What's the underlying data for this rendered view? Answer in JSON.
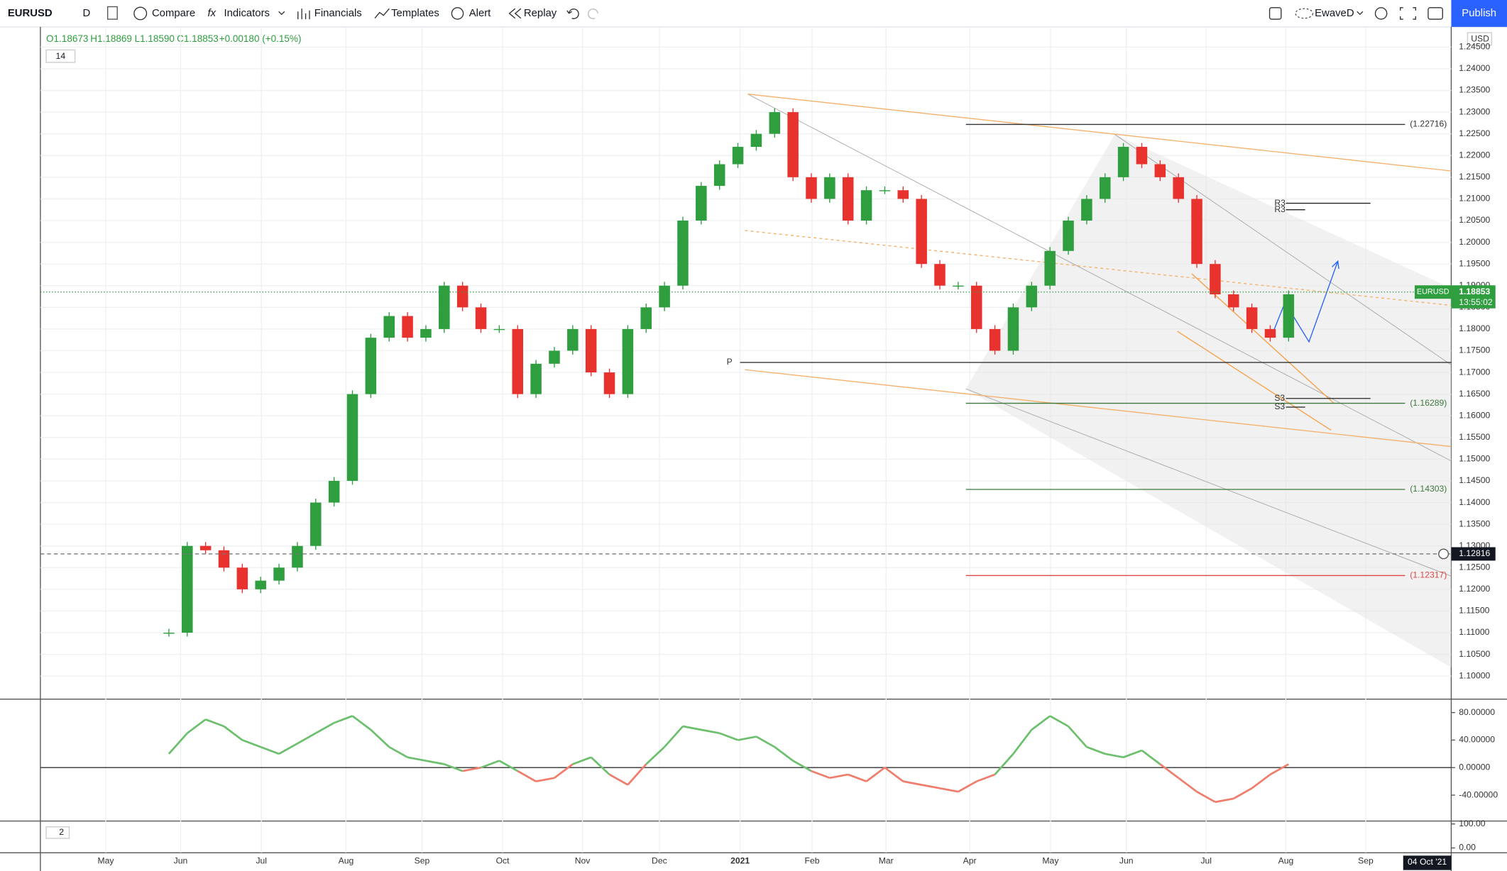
{
  "header": {
    "symbol": "EURUSD",
    "interval": "D",
    "compare": "Compare",
    "indicators": "Indicators",
    "financials": "Financials",
    "templates": "Templates",
    "alert": "Alert",
    "replay": "Replay",
    "user": "EwaveD",
    "publish": "Publish"
  },
  "legend": {
    "open": "O1.18673",
    "high": "H1.18869",
    "low": "L1.18590",
    "close": "C1.18853",
    "change": "+0.00180 (+0.15%)",
    "indicator_length": "14",
    "indicator2_length": "2"
  },
  "currency": "USD",
  "cursor_date": "04 Oct '21",
  "chart_data": [
    {
      "type": "candlestick",
      "name": "EURUSD",
      "x": [
        7,
        8,
        9,
        10,
        11,
        12,
        13,
        14,
        15,
        16,
        17,
        18,
        19,
        20,
        21,
        22,
        23,
        24,
        25,
        26,
        27,
        28,
        29,
        30,
        31,
        32,
        33,
        34,
        35,
        36,
        37,
        38,
        39,
        40,
        41,
        42,
        43,
        44,
        45,
        46,
        47,
        48,
        49,
        50,
        51,
        52,
        53,
        54,
        55,
        56,
        57,
        58,
        59,
        60,
        61,
        62,
        63,
        64,
        65,
        66,
        67,
        68
      ],
      "values": [
        1.11,
        1.13,
        1.129,
        1.125,
        1.12,
        1.122,
        1.125,
        1.13,
        1.14,
        1.145,
        1.165,
        1.178,
        1.183,
        1.178,
        1.18,
        1.19,
        1.185,
        1.18,
        1.18,
        1.165,
        1.172,
        1.175,
        1.18,
        1.17,
        1.165,
        1.18,
        1.185,
        1.19,
        1.205,
        1.213,
        1.218,
        1.222,
        1.225,
        1.23,
        1.215,
        1.21,
        1.215,
        1.205,
        1.212,
        1.212,
        1.21,
        1.195,
        1.19,
        1.19,
        1.18,
        1.175,
        1.185,
        1.19,
        1.198,
        1.205,
        1.21,
        1.215,
        1.222,
        1.218,
        1.215,
        1.21,
        1.195,
        1.188,
        1.185,
        1.18,
        1.178,
        1.188
      ],
      "up_color": "#2e9e3e",
      "down_color": "#e8322e",
      "xlim": [
        0,
        76.86
      ],
      "xticks": [
        {
          "value": 3.56,
          "label": "May"
        },
        {
          "value": 7.64,
          "label": "Jun"
        },
        {
          "value": 12.04,
          "label": "Jul"
        },
        {
          "value": 16.65,
          "label": "Aug"
        },
        {
          "value": 20.79,
          "label": "Sep"
        },
        {
          "value": 25.18,
          "label": "Oct"
        },
        {
          "value": 29.53,
          "label": "Nov"
        },
        {
          "value": 33.72,
          "label": "Dec"
        },
        {
          "value": 38.12,
          "label": "2021"
        },
        {
          "value": 42.04,
          "label": "Feb"
        },
        {
          "value": 46.07,
          "label": "Mar"
        },
        {
          "value": 50.63,
          "label": "Apr"
        },
        {
          "value": 55.03,
          "label": "May"
        },
        {
          "value": 59.16,
          "label": "Jun"
        },
        {
          "value": 63.51,
          "label": "Jul"
        },
        {
          "value": 67.85,
          "label": "Aug"
        },
        {
          "value": 72.2,
          "label": "Sep"
        }
      ],
      "ylim": [
        1.09469,
        1.24744
      ],
      "yticks": [
        {
          "value": 1.1,
          "label": "1.10000"
        },
        {
          "value": 1.105,
          "label": "1.10500"
        },
        {
          "value": 1.11,
          "label": "1.11000"
        },
        {
          "value": 1.115,
          "label": "1.11500"
        },
        {
          "value": 1.12,
          "label": "1.12000"
        },
        {
          "value": 1.125,
          "label": "1.12500"
        },
        {
          "value": 1.13,
          "label": "1.13000"
        },
        {
          "value": 1.135,
          "label": "1.13500"
        },
        {
          "value": 1.14,
          "label": "1.14000"
        },
        {
          "value": 1.145,
          "label": "1.14500"
        },
        {
          "value": 1.15,
          "label": "1.15000"
        },
        {
          "value": 1.155,
          "label": "1.15500"
        },
        {
          "value": 1.16,
          "label": "1.16000"
        },
        {
          "value": 1.165,
          "label": "1.16500"
        },
        {
          "value": 1.17,
          "label": "1.17000"
        },
        {
          "value": 1.175,
          "label": "1.17500"
        },
        {
          "value": 1.18,
          "label": "1.18000"
        },
        {
          "value": 1.185,
          "label": "1.18500"
        },
        {
          "value": 1.19,
          "label": "1.19000"
        },
        {
          "value": 1.195,
          "label": "1.19500"
        },
        {
          "value": 1.2,
          "label": "1.20000"
        },
        {
          "value": 1.205,
          "label": "1.20500"
        },
        {
          "value": 1.21,
          "label": "1.21000"
        },
        {
          "value": 1.215,
          "label": "1.21500"
        },
        {
          "value": 1.22,
          "label": "1.22000"
        },
        {
          "value": 1.225,
          "label": "1.22500"
        },
        {
          "value": 1.23,
          "label": "1.23000"
        },
        {
          "value": 1.235,
          "label": "1.23500"
        },
        {
          "value": 1.24,
          "label": "1.24000"
        },
        {
          "value": 1.245,
          "label": "1.24500"
        }
      ],
      "grid": true,
      "levels": [
        {
          "value": 1.22716,
          "label": "(1.22716)",
          "color": "#333333"
        },
        {
          "value": 1.16289,
          "label": "(1.16289)",
          "color": "#3d7a3d"
        },
        {
          "value": 1.14303,
          "label": "(1.14303)",
          "color": "#3d7a3d"
        },
        {
          "value": 1.12317,
          "label": "(1.12317)",
          "color": "#e04545"
        }
      ],
      "pivots": [
        {
          "value": 1.1723,
          "label": "P"
        },
        {
          "value": 1.209,
          "label": "R3"
        },
        {
          "value": 1.2075,
          "label": "R3"
        },
        {
          "value": 1.164,
          "label": "S3"
        },
        {
          "value": 1.162,
          "label": "S3"
        }
      ],
      "last_price": {
        "value": 1.18853,
        "label": "1.18853",
        "countdown": "13:55:02"
      },
      "crosshair": {
        "value": 1.12816,
        "label": "1.12816"
      }
    },
    {
      "type": "line",
      "name": "oscillator",
      "x": [
        7,
        8,
        9,
        10,
        11,
        12,
        13,
        14,
        15,
        16,
        17,
        18,
        19,
        20,
        21,
        22,
        23,
        24,
        25,
        26,
        27,
        28,
        29,
        30,
        31,
        32,
        33,
        34,
        35,
        36,
        37,
        38,
        39,
        40,
        41,
        42,
        43,
        44,
        45,
        46,
        47,
        48,
        49,
        50,
        51,
        52,
        53,
        54,
        55,
        56,
        57,
        58,
        59,
        60,
        61,
        62,
        63,
        64,
        65,
        66,
        67,
        68
      ],
      "values": [
        20,
        50,
        70,
        60,
        40,
        30,
        20,
        35,
        50,
        65,
        75,
        55,
        30,
        15,
        10,
        5,
        -5,
        0,
        10,
        -5,
        -20,
        -15,
        5,
        15,
        -10,
        -25,
        5,
        30,
        60,
        55,
        50,
        40,
        45,
        30,
        10,
        -5,
        -15,
        -10,
        -20,
        0,
        -20,
        -25,
        -30,
        -35,
        -20,
        -10,
        20,
        55,
        75,
        60,
        30,
        20,
        15,
        25,
        5,
        -15,
        -35,
        -50,
        -45,
        -30,
        -10,
        5
      ],
      "color_above": "#6cbf6c",
      "color_below": "#f07c6c",
      "xlim": [
        0,
        76.86
      ],
      "ylim": [
        -77.67,
        99.53
      ],
      "yticks": [
        {
          "value": 80,
          "label": "80.00000"
        },
        {
          "value": 40,
          "label": "40.00000"
        },
        {
          "value": 0,
          "label": "0.00000"
        },
        {
          "value": -40,
          "label": "-40.00000"
        }
      ]
    },
    {
      "type": "empty",
      "name": "oscillator2",
      "ylim": [
        -20,
        112
      ],
      "yticks": [
        {
          "value": 100,
          "label": "100.00"
        },
        {
          "value": 0,
          "label": "0.00"
        }
      ]
    }
  ]
}
